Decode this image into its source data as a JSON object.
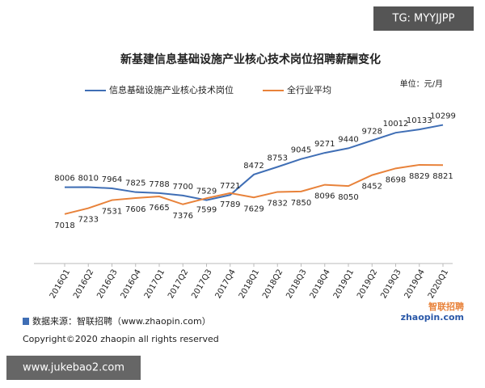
{
  "chart_data": {
    "type": "line",
    "title": "新基建信息基础设施产业核心技术岗位招聘薪酬变化",
    "unit_label": "单位：元/月",
    "categories": [
      "2016Q1",
      "2016Q2",
      "2016Q3",
      "2016Q4",
      "2017Q1",
      "2017Q2",
      "2017Q3",
      "2017Q4",
      "2018Q1",
      "2018Q2",
      "2018Q3",
      "2018Q4",
      "2019Q1",
      "2019Q2",
      "2019Q3",
      "2019Q4",
      "2020Q1"
    ],
    "series": [
      {
        "name": "信息基础设施产业核心技术岗位",
        "color": "#3f6eb5",
        "values": [
          8006,
          8010,
          7964,
          7825,
          7788,
          7700,
          7529,
          7721,
          8472,
          8753,
          9045,
          9271,
          9440,
          9728,
          10012,
          10133,
          10299
        ]
      },
      {
        "name": "全行业平均",
        "color": "#e8823a",
        "values": [
          7018,
          7233,
          7531,
          7606,
          7665,
          7376,
          7599,
          7789,
          7629,
          7832,
          7850,
          8096,
          8050,
          8452,
          8698,
          8829,
          8821
        ]
      }
    ],
    "ylim": [
      6000,
      11000
    ],
    "source": "数据来源：智联招聘（www.zhaopin.com）",
    "copyright": "Copyright©2020 zhaopin all rights reserved",
    "logo": [
      "智联招聘",
      "zhaopin.com"
    ]
  },
  "watermarks": [
    "TG: MYYJJPP",
    "www.jukebao2.com"
  ]
}
